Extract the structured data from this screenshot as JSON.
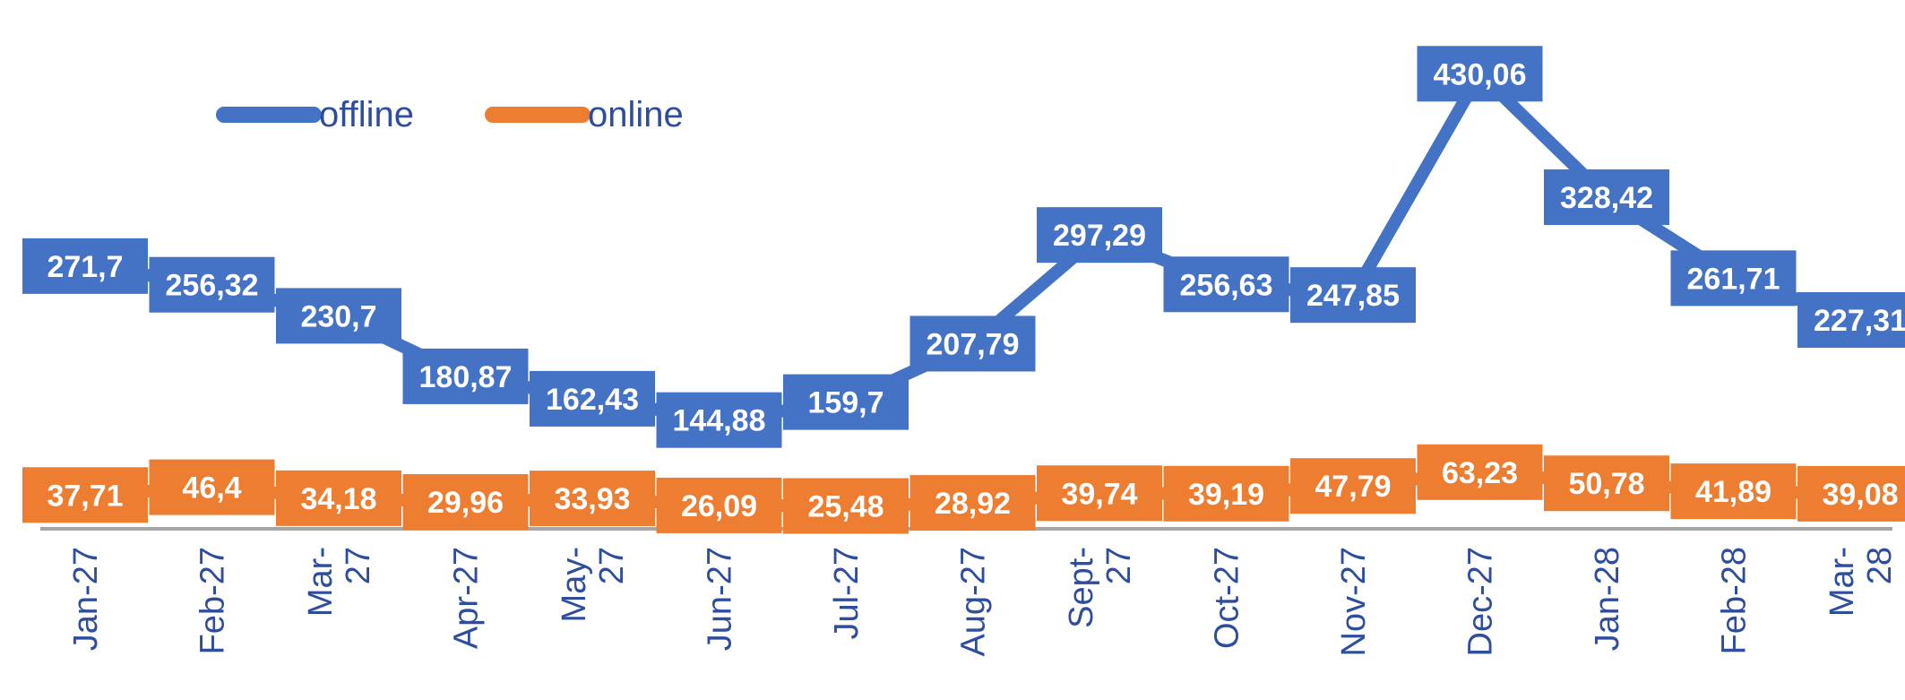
{
  "chart_data": {
    "type": "line",
    "categories": [
      [
        "Jan-27"
      ],
      [
        "Feb-27"
      ],
      [
        "Mar-",
        "27"
      ],
      [
        "Apr-27"
      ],
      [
        "May-",
        "27"
      ],
      [
        "Jun-27"
      ],
      [
        "Jul-27"
      ],
      [
        "Aug-27"
      ],
      [
        "Sept-",
        "27"
      ],
      [
        "Oct-27"
      ],
      [
        "Nov-27"
      ],
      [
        "Dec-27"
      ],
      [
        "Jan-28"
      ],
      [
        "Feb-28"
      ],
      [
        "Mar-",
        "28"
      ]
    ],
    "series": [
      {
        "name": "offline",
        "color": "#4472c4",
        "values": [
          271.7,
          256.32,
          230.7,
          180.87,
          162.43,
          144.88,
          159.7,
          207.79,
          297.29,
          256.63,
          247.85,
          430.06,
          328.42,
          261.71,
          227.31
        ],
        "labels": [
          "271,7",
          "256,32",
          "230,7",
          "180,87",
          "162,43",
          "144,88",
          "159,7",
          "207,79",
          "297,29",
          "256,63",
          "247,85",
          "430,06",
          "328,42",
          "261,71",
          "227,31"
        ]
      },
      {
        "name": "online",
        "color": "#ed7d31",
        "values": [
          37.71,
          46.4,
          34.18,
          29.96,
          33.93,
          26.09,
          25.48,
          28.92,
          39.74,
          39.19,
          47.79,
          63.23,
          50.78,
          41.89,
          39.08
        ],
        "labels": [
          "37,71",
          "46,4",
          "34,18",
          "29,96",
          "33,93",
          "26,09",
          "25,48",
          "28,92",
          "39,74",
          "39,19",
          "47,79",
          "63,23",
          "50,78",
          "41,89",
          "39,08"
        ]
      }
    ],
    "legend": "top-left",
    "axis_color": "#a6a6a6",
    "tick_color": "#2e4d9c",
    "grid": false
  }
}
